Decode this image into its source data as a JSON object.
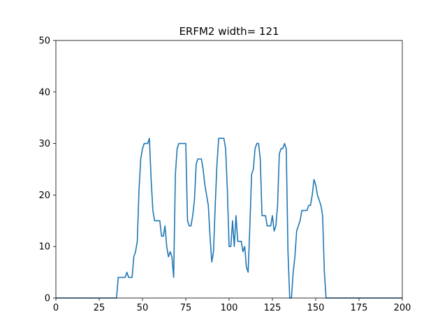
{
  "chart_data": {
    "type": "line",
    "title": "ERFM2 width= 121",
    "xlabel": "",
    "ylabel": "",
    "xlim": [
      0,
      200
    ],
    "ylim": [
      0,
      50
    ],
    "grid": false,
    "xticks": [
      0,
      25,
      50,
      75,
      100,
      125,
      150,
      175,
      200
    ],
    "yticks": [
      0,
      10,
      20,
      30,
      40,
      50
    ],
    "series_color": "#1f77b4",
    "series": [
      {
        "x": [
          0,
          35,
          36,
          37,
          38,
          39,
          40,
          41,
          42,
          43,
          44,
          45,
          46,
          47,
          48,
          49,
          50,
          51,
          52,
          53,
          54,
          55,
          56,
          57,
          58,
          59,
          60,
          61,
          62,
          63,
          64,
          65,
          66,
          67,
          68,
          69,
          70,
          71,
          72,
          73,
          74,
          75,
          76,
          77,
          78,
          79,
          80,
          81,
          82,
          83,
          84,
          85,
          86,
          87,
          88,
          89,
          90,
          91,
          92,
          93,
          94,
          95,
          96,
          97,
          98,
          99,
          100,
          101,
          102,
          103,
          104,
          105,
          106,
          107,
          108,
          109,
          110,
          111,
          112,
          113,
          114,
          115,
          116,
          117,
          118,
          119,
          120,
          121,
          122,
          123,
          124,
          125,
          126,
          127,
          128,
          129,
          130,
          131,
          132,
          133,
          134,
          135,
          136,
          137,
          138,
          139,
          140,
          141,
          142,
          143,
          144,
          145,
          146,
          147,
          148,
          149,
          150,
          151,
          152,
          153,
          154,
          155,
          156,
          157,
          200
        ],
        "values": [
          0,
          0,
          4,
          4,
          4,
          4,
          4,
          5,
          4,
          4,
          4,
          8,
          9,
          11,
          21,
          27,
          29,
          30,
          30,
          30,
          31,
          23,
          17,
          15,
          15,
          15,
          15,
          12,
          12,
          14,
          10,
          8,
          9,
          8,
          4,
          24,
          29,
          30,
          30,
          30,
          30,
          30,
          15,
          14,
          14,
          16,
          19,
          26,
          27,
          27,
          27,
          25,
          22,
          20,
          18,
          12,
          7,
          9,
          18,
          26,
          31,
          31,
          31,
          31,
          29,
          21,
          10,
          10,
          15,
          10,
          16,
          11,
          11,
          11,
          9,
          10,
          6,
          5,
          14,
          24,
          25,
          29,
          30,
          30,
          27,
          16,
          16,
          16,
          14,
          14,
          14,
          16,
          13,
          14,
          18,
          28,
          29,
          29,
          30,
          29,
          9,
          0,
          0,
          5,
          8,
          13,
          14,
          15,
          17,
          17,
          17,
          17,
          18,
          18,
          20,
          23,
          22,
          20,
          19,
          18,
          16,
          5,
          0,
          0,
          0
        ]
      }
    ]
  }
}
